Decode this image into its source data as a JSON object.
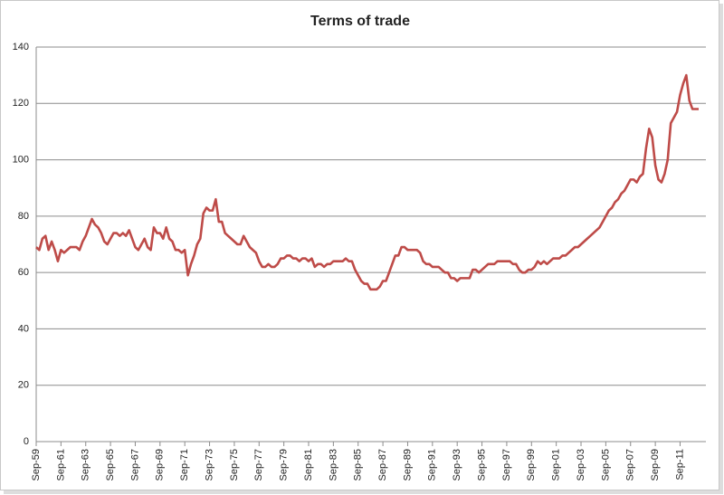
{
  "chart_data": {
    "type": "line",
    "title": "Terms of trade",
    "categories": [
      "Sep-59",
      null,
      null,
      null,
      null,
      null,
      null,
      null,
      "Sep-61",
      null,
      null,
      null,
      null,
      null,
      null,
      null,
      "Sep-63",
      null,
      null,
      null,
      null,
      null,
      null,
      null,
      "Sep-65",
      null,
      null,
      null,
      null,
      null,
      null,
      null,
      "Sep-67",
      null,
      null,
      null,
      null,
      null,
      null,
      null,
      "Sep-69",
      null,
      null,
      null,
      null,
      null,
      null,
      null,
      "Sep-71",
      null,
      null,
      null,
      null,
      null,
      null,
      null,
      "Sep-73",
      null,
      null,
      null,
      null,
      null,
      null,
      null,
      "Sep-75",
      null,
      null,
      null,
      null,
      null,
      null,
      null,
      "Sep-77",
      null,
      null,
      null,
      null,
      null,
      null,
      null,
      "Sep-79",
      null,
      null,
      null,
      null,
      null,
      null,
      null,
      "Sep-81",
      null,
      null,
      null,
      null,
      null,
      null,
      null,
      "Sep-83",
      null,
      null,
      null,
      null,
      null,
      null,
      null,
      "Sep-85",
      null,
      null,
      null,
      null,
      null,
      null,
      null,
      "Sep-87",
      null,
      null,
      null,
      null,
      null,
      null,
      null,
      "Sep-89",
      null,
      null,
      null,
      null,
      null,
      null,
      null,
      "Sep-91",
      null,
      null,
      null,
      null,
      null,
      null,
      null,
      "Sep-93",
      null,
      null,
      null,
      null,
      null,
      null,
      null,
      "Sep-95",
      null,
      null,
      null,
      null,
      null,
      null,
      null,
      "Sep-97",
      null,
      null,
      null,
      null,
      null,
      null,
      null,
      "Sep-99",
      null,
      null,
      null,
      null,
      null,
      null,
      null,
      "Sep-01",
      null,
      null,
      null,
      null,
      null,
      null,
      null,
      "Sep-03",
      null,
      null,
      null,
      null,
      null,
      null,
      null,
      "Sep-05",
      null,
      null,
      null,
      null,
      null,
      null,
      null,
      "Sep-07",
      null,
      null,
      null,
      null,
      null,
      null,
      null,
      "Sep-09",
      null,
      null,
      null,
      null,
      null,
      null,
      null,
      "Sep-11",
      null,
      null,
      null,
      null,
      null,
      null
    ],
    "series": [
      {
        "name": "Terms of trade",
        "color": "#be4b48",
        "values": [
          69,
          68,
          72,
          73,
          68,
          71,
          68,
          64,
          68,
          67,
          68,
          69,
          69,
          69,
          68,
          71,
          73,
          76,
          79,
          77,
          76,
          74,
          71,
          70,
          72,
          74,
          74,
          73,
          74,
          73,
          75,
          72,
          69,
          68,
          70,
          72,
          69,
          68,
          76,
          74,
          74,
          72,
          76,
          72,
          71,
          68,
          68,
          67,
          68,
          59,
          63,
          66,
          70,
          72,
          81,
          83,
          82,
          82,
          86,
          78,
          78,
          74,
          73,
          72,
          71,
          70,
          70,
          73,
          71,
          69,
          68,
          67,
          64,
          62,
          62,
          63,
          62,
          62,
          63,
          65,
          65,
          66,
          66,
          65,
          65,
          64,
          65,
          65,
          64,
          65,
          62,
          63,
          63,
          62,
          63,
          63,
          64,
          64,
          64,
          64,
          65,
          64,
          64,
          61,
          59,
          57,
          56,
          56,
          54,
          54,
          54,
          55,
          57,
          57,
          60,
          63,
          66,
          66,
          69,
          69,
          68,
          68,
          68,
          68,
          67,
          64,
          63,
          63,
          62,
          62,
          62,
          61,
          60,
          60,
          58,
          58,
          57,
          58,
          58,
          58,
          58,
          61,
          61,
          60,
          61,
          62,
          63,
          63,
          63,
          64,
          64,
          64,
          64,
          64,
          63,
          63,
          61,
          60,
          60,
          61,
          61,
          62,
          64,
          63,
          64,
          63,
          64,
          65,
          65,
          65,
          66,
          66,
          67,
          68,
          69,
          69,
          70,
          71,
          72,
          73,
          74,
          75,
          76,
          78,
          80,
          82,
          83,
          85,
          86,
          88,
          89,
          91,
          93,
          93,
          92,
          94,
          95,
          104,
          111,
          108,
          98,
          93,
          92,
          95,
          100,
          113,
          115,
          117,
          123,
          127,
          130,
          121,
          118,
          118,
          118
        ]
      }
    ],
    "ylim": [
      0,
      140
    ],
    "yticks": [
      0,
      20,
      40,
      60,
      80,
      100,
      120,
      140
    ],
    "grid": true
  }
}
